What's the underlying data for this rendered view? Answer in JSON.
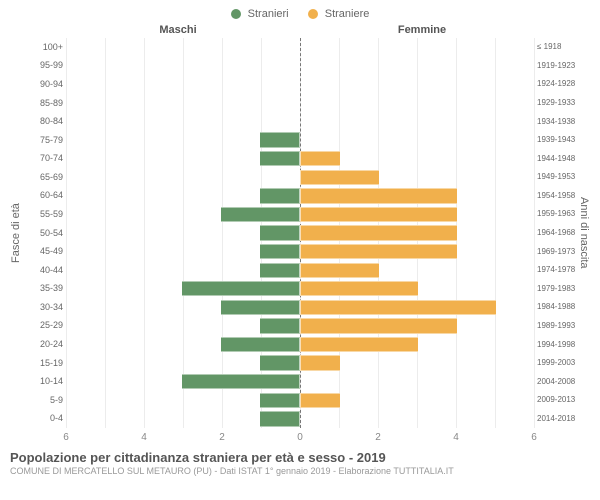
{
  "colors": {
    "male": "#629666",
    "female": "#f1b04c",
    "grid": "#ececec",
    "center_dash": "#777777",
    "background": "#ffffff",
    "text": "#666666"
  },
  "legend": {
    "male_label": "Stranieri",
    "female_label": "Straniere"
  },
  "headers": {
    "left": "Maschi",
    "right": "Femmine"
  },
  "y_axis_left_label": "Fasce di età",
  "y_axis_right_label": "Anni di nascita",
  "x_axis": {
    "max": 6,
    "ticks_left": [
      6,
      4,
      2,
      0
    ],
    "ticks_right": [
      0,
      2,
      4,
      6
    ]
  },
  "age_bands": [
    {
      "age": "100+",
      "birth": "≤ 1918",
      "m": 0,
      "f": 0
    },
    {
      "age": "95-99",
      "birth": "1919-1923",
      "m": 0,
      "f": 0
    },
    {
      "age": "90-94",
      "birth": "1924-1928",
      "m": 0,
      "f": 0
    },
    {
      "age": "85-89",
      "birth": "1929-1933",
      "m": 0,
      "f": 0
    },
    {
      "age": "80-84",
      "birth": "1934-1938",
      "m": 0,
      "f": 0
    },
    {
      "age": "75-79",
      "birth": "1939-1943",
      "m": 1,
      "f": 0
    },
    {
      "age": "70-74",
      "birth": "1944-1948",
      "m": 1,
      "f": 1
    },
    {
      "age": "65-69",
      "birth": "1949-1953",
      "m": 0,
      "f": 2
    },
    {
      "age": "60-64",
      "birth": "1954-1958",
      "m": 1,
      "f": 4
    },
    {
      "age": "55-59",
      "birth": "1959-1963",
      "m": 2,
      "f": 4
    },
    {
      "age": "50-54",
      "birth": "1964-1968",
      "m": 1,
      "f": 4
    },
    {
      "age": "45-49",
      "birth": "1969-1973",
      "m": 1,
      "f": 4
    },
    {
      "age": "40-44",
      "birth": "1974-1978",
      "m": 1,
      "f": 2
    },
    {
      "age": "35-39",
      "birth": "1979-1983",
      "m": 3,
      "f": 3
    },
    {
      "age": "30-34",
      "birth": "1984-1988",
      "m": 2,
      "f": 5
    },
    {
      "age": "25-29",
      "birth": "1989-1993",
      "m": 1,
      "f": 4
    },
    {
      "age": "20-24",
      "birth": "1994-1998",
      "m": 2,
      "f": 3
    },
    {
      "age": "15-19",
      "birth": "1999-2003",
      "m": 1,
      "f": 1
    },
    {
      "age": "10-14",
      "birth": "2004-2008",
      "m": 3,
      "f": 0
    },
    {
      "age": "5-9",
      "birth": "2009-2013",
      "m": 1,
      "f": 1
    },
    {
      "age": "0-4",
      "birth": "2014-2018",
      "m": 1,
      "f": 0
    }
  ],
  "title": "Popolazione per cittadinanza straniera per età e sesso - 2019",
  "subtitle": "COMUNE DI MERCATELLO SUL METAURO (PU) - Dati ISTAT 1° gennaio 2019 - Elaborazione TUTTITALIA.IT"
}
